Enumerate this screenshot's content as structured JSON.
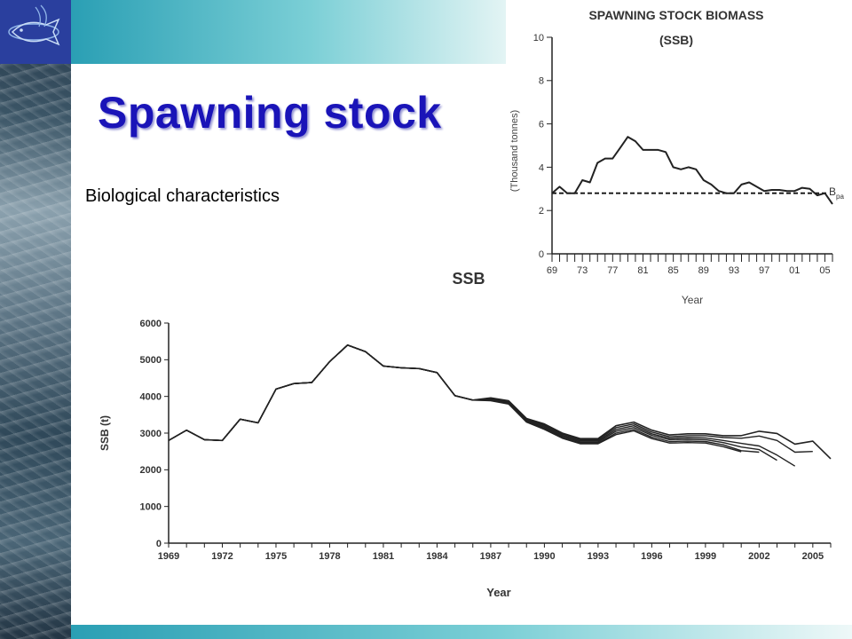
{
  "slide": {
    "title": "Spawning stock",
    "subtitle": "Biological characteristics",
    "colors": {
      "title": "#1a14b8",
      "band": "#2a9fb4",
      "logo_bg": "#2a3f9e"
    },
    "logo_icon": "fish-logo-icon"
  },
  "chart_data": [
    {
      "type": "line",
      "title": "SPAWNING STOCK BIOMASS",
      "subtitle": "(SSB)",
      "xlabel": "Year",
      "ylabel": "(Thousand tonnes)",
      "ylim": [
        0,
        10
      ],
      "yticks": [
        "0",
        "2",
        "4",
        "6",
        "8",
        "10"
      ],
      "xlim": [
        1969,
        2006
      ],
      "xtick_labels": [
        "69",
        "73",
        "77",
        "81",
        "85",
        "89",
        "93",
        "97",
        "01",
        "05"
      ],
      "xtick_values": [
        1969,
        1973,
        1977,
        1981,
        1985,
        1989,
        1993,
        1997,
        2001,
        2005
      ],
      "reference_line": {
        "label": "B",
        "label_sub": "pa",
        "value": 2.8,
        "style": "dashed"
      },
      "series": [
        {
          "values": [
            [
              1969,
              2.8
            ],
            [
              1970,
              3.1
            ],
            [
              1971,
              2.8
            ],
            [
              1972,
              2.8
            ],
            [
              1973,
              3.4
            ],
            [
              1974,
              3.3
            ],
            [
              1975,
              4.2
            ],
            [
              1976,
              4.4
            ],
            [
              1977,
              4.4
            ],
            [
              1978,
              4.9
            ],
            [
              1979,
              5.4
            ],
            [
              1980,
              5.2
            ],
            [
              1981,
              4.8
            ],
            [
              1982,
              4.8
            ],
            [
              1983,
              4.8
            ],
            [
              1984,
              4.7
            ],
            [
              1985,
              4.0
            ],
            [
              1986,
              3.9
            ],
            [
              1987,
              4.0
            ],
            [
              1988,
              3.9
            ],
            [
              1989,
              3.4
            ],
            [
              1990,
              3.2
            ],
            [
              1991,
              2.9
            ],
            [
              1992,
              2.8
            ],
            [
              1993,
              2.8
            ],
            [
              1994,
              3.2
            ],
            [
              1995,
              3.3
            ],
            [
              1996,
              3.1
            ],
            [
              1997,
              2.9
            ],
            [
              1998,
              2.95
            ],
            [
              1999,
              2.95
            ],
            [
              2000,
              2.9
            ],
            [
              2001,
              2.9
            ],
            [
              2002,
              3.05
            ],
            [
              2003,
              3.0
            ],
            [
              2004,
              2.7
            ],
            [
              2005,
              2.8
            ],
            [
              2006,
              2.3
            ]
          ]
        }
      ]
    },
    {
      "type": "line",
      "title": "SSB",
      "xlabel": "Year",
      "ylabel": "SSB (t)",
      "ylim": [
        0,
        6000
      ],
      "yticks": [
        "0",
        "1000",
        "2000",
        "3000",
        "4000",
        "5000",
        "6000"
      ],
      "xlim": [
        1969,
        2006
      ],
      "xtick_labels": [
        "1969",
        "1972",
        "1975",
        "1978",
        "1981",
        "1984",
        "1987",
        "1990",
        "1993",
        "1996",
        "1999",
        "2002",
        "2005"
      ],
      "xtick_values": [
        1969,
        1972,
        1975,
        1978,
        1981,
        1984,
        1987,
        1990,
        1993,
        1996,
        1999,
        2002,
        2005
      ],
      "series": [
        {
          "values": [
            [
              1969,
              2800
            ],
            [
              1970,
              3080
            ],
            [
              1971,
              2820
            ],
            [
              1972,
              2800
            ],
            [
              1973,
              3380
            ],
            [
              1974,
              3280
            ],
            [
              1975,
              4200
            ],
            [
              1976,
              4350
            ],
            [
              1977,
              4380
            ],
            [
              1978,
              4950
            ],
            [
              1979,
              5400
            ],
            [
              1980,
              5220
            ],
            [
              1981,
              4830
            ],
            [
              1982,
              4780
            ],
            [
              1983,
              4760
            ],
            [
              1984,
              4650
            ],
            [
              1985,
              4020
            ],
            [
              1986,
              3900
            ],
            [
              1987,
              3960
            ],
            [
              1988,
              3880
            ],
            [
              1989,
              3400
            ],
            [
              1990,
              3250
            ],
            [
              1991,
              3000
            ],
            [
              1992,
              2850
            ],
            [
              1993,
              2850
            ],
            [
              1994,
              3200
            ],
            [
              1995,
              3300
            ],
            [
              1996,
              3080
            ],
            [
              1997,
              2950
            ],
            [
              1998,
              2980
            ],
            [
              1999,
              2980
            ],
            [
              2000,
              2930
            ],
            [
              2001,
              2930
            ],
            [
              2002,
              3050
            ],
            [
              2003,
              2990
            ],
            [
              2004,
              2700
            ],
            [
              2005,
              2780
            ],
            [
              2006,
              2300
            ]
          ]
        },
        {
          "values": [
            [
              1969,
              2800
            ],
            [
              1970,
              3080
            ],
            [
              1971,
              2820
            ],
            [
              1972,
              2800
            ],
            [
              1973,
              3380
            ],
            [
              1974,
              3280
            ],
            [
              1975,
              4200
            ],
            [
              1976,
              4350
            ],
            [
              1977,
              4380
            ],
            [
              1978,
              4950
            ],
            [
              1979,
              5400
            ],
            [
              1980,
              5220
            ],
            [
              1981,
              4830
            ],
            [
              1982,
              4780
            ],
            [
              1983,
              4760
            ],
            [
              1984,
              4650
            ],
            [
              1985,
              4020
            ],
            [
              1986,
              3900
            ],
            [
              1987,
              3950
            ],
            [
              1988,
              3860
            ],
            [
              1989,
              3380
            ],
            [
              1990,
              3220
            ],
            [
              1991,
              2970
            ],
            [
              1992,
              2820
            ],
            [
              1993,
              2820
            ],
            [
              1994,
              3150
            ],
            [
              1995,
              3250
            ],
            [
              1996,
              3030
            ],
            [
              1997,
              2900
            ],
            [
              1998,
              2930
            ],
            [
              1999,
              2930
            ],
            [
              2000,
              2880
            ],
            [
              2001,
              2860
            ],
            [
              2002,
              2920
            ],
            [
              2003,
              2800
            ],
            [
              2004,
              2480
            ],
            [
              2005,
              2500
            ]
          ]
        },
        {
          "values": [
            [
              1969,
              2800
            ],
            [
              1970,
              3080
            ],
            [
              1971,
              2820
            ],
            [
              1972,
              2800
            ],
            [
              1973,
              3380
            ],
            [
              1974,
              3280
            ],
            [
              1975,
              4200
            ],
            [
              1976,
              4350
            ],
            [
              1977,
              4380
            ],
            [
              1978,
              4950
            ],
            [
              1979,
              5400
            ],
            [
              1980,
              5220
            ],
            [
              1981,
              4830
            ],
            [
              1982,
              4780
            ],
            [
              1983,
              4760
            ],
            [
              1984,
              4650
            ],
            [
              1985,
              4020
            ],
            [
              1986,
              3900
            ],
            [
              1987,
              3930
            ],
            [
              1988,
              3840
            ],
            [
              1989,
              3360
            ],
            [
              1990,
              3190
            ],
            [
              1991,
              2940
            ],
            [
              1992,
              2790
            ],
            [
              1993,
              2790
            ],
            [
              1994,
              3100
            ],
            [
              1995,
              3200
            ],
            [
              1996,
              2980
            ],
            [
              1997,
              2860
            ],
            [
              1998,
              2880
            ],
            [
              1999,
              2870
            ],
            [
              2000,
              2800
            ],
            [
              2001,
              2720
            ],
            [
              2002,
              2650
            ],
            [
              2003,
              2400
            ],
            [
              2004,
              2100
            ]
          ]
        },
        {
          "values": [
            [
              1969,
              2800
            ],
            [
              1970,
              3080
            ],
            [
              1971,
              2820
            ],
            [
              1972,
              2800
            ],
            [
              1973,
              3380
            ],
            [
              1974,
              3280
            ],
            [
              1975,
              4200
            ],
            [
              1976,
              4350
            ],
            [
              1977,
              4380
            ],
            [
              1978,
              4950
            ],
            [
              1979,
              5400
            ],
            [
              1980,
              5220
            ],
            [
              1981,
              4830
            ],
            [
              1982,
              4780
            ],
            [
              1983,
              4760
            ],
            [
              1984,
              4650
            ],
            [
              1985,
              4020
            ],
            [
              1986,
              3900
            ],
            [
              1987,
              3910
            ],
            [
              1988,
              3820
            ],
            [
              1989,
              3340
            ],
            [
              1990,
              3160
            ],
            [
              1991,
              2910
            ],
            [
              1992,
              2760
            ],
            [
              1993,
              2760
            ],
            [
              1994,
              3050
            ],
            [
              1995,
              3150
            ],
            [
              1996,
              2940
            ],
            [
              1997,
              2820
            ],
            [
              1998,
              2830
            ],
            [
              1999,
              2820
            ],
            [
              2000,
              2740
            ],
            [
              2001,
              2620
            ],
            [
              2002,
              2550
            ],
            [
              2003,
              2260
            ]
          ]
        },
        {
          "values": [
            [
              1969,
              2800
            ],
            [
              1970,
              3080
            ],
            [
              1971,
              2820
            ],
            [
              1972,
              2800
            ],
            [
              1973,
              3380
            ],
            [
              1974,
              3280
            ],
            [
              1975,
              4200
            ],
            [
              1976,
              4350
            ],
            [
              1977,
              4380
            ],
            [
              1978,
              4950
            ],
            [
              1979,
              5400
            ],
            [
              1980,
              5220
            ],
            [
              1981,
              4830
            ],
            [
              1982,
              4780
            ],
            [
              1983,
              4760
            ],
            [
              1984,
              4650
            ],
            [
              1985,
              4020
            ],
            [
              1986,
              3900
            ],
            [
              1987,
              3890
            ],
            [
              1988,
              3800
            ],
            [
              1989,
              3320
            ],
            [
              1990,
              3130
            ],
            [
              1991,
              2880
            ],
            [
              1992,
              2730
            ],
            [
              1993,
              2730
            ],
            [
              1994,
              3000
            ],
            [
              1995,
              3100
            ],
            [
              1996,
              2890
            ],
            [
              1997,
              2770
            ],
            [
              1998,
              2780
            ],
            [
              1999,
              2770
            ],
            [
              2000,
              2680
            ],
            [
              2001,
              2520
            ],
            [
              2002,
              2480
            ]
          ]
        },
        {
          "values": [
            [
              1969,
              2800
            ],
            [
              1970,
              3080
            ],
            [
              1971,
              2820
            ],
            [
              1972,
              2800
            ],
            [
              1973,
              3380
            ],
            [
              1974,
              3280
            ],
            [
              1975,
              4200
            ],
            [
              1976,
              4350
            ],
            [
              1977,
              4380
            ],
            [
              1978,
              4950
            ],
            [
              1979,
              5400
            ],
            [
              1980,
              5220
            ],
            [
              1981,
              4830
            ],
            [
              1982,
              4780
            ],
            [
              1983,
              4760
            ],
            [
              1984,
              4650
            ],
            [
              1985,
              4020
            ],
            [
              1986,
              3900
            ],
            [
              1987,
              3880
            ],
            [
              1988,
              3790
            ],
            [
              1989,
              3300
            ],
            [
              1990,
              3100
            ],
            [
              1991,
              2860
            ],
            [
              1992,
              2710
            ],
            [
              1993,
              2710
            ],
            [
              1994,
              2960
            ],
            [
              1995,
              3060
            ],
            [
              1996,
              2850
            ],
            [
              1997,
              2730
            ],
            [
              1998,
              2740
            ],
            [
              1999,
              2730
            ],
            [
              2000,
              2630
            ],
            [
              2001,
              2490
            ]
          ]
        }
      ]
    }
  ]
}
